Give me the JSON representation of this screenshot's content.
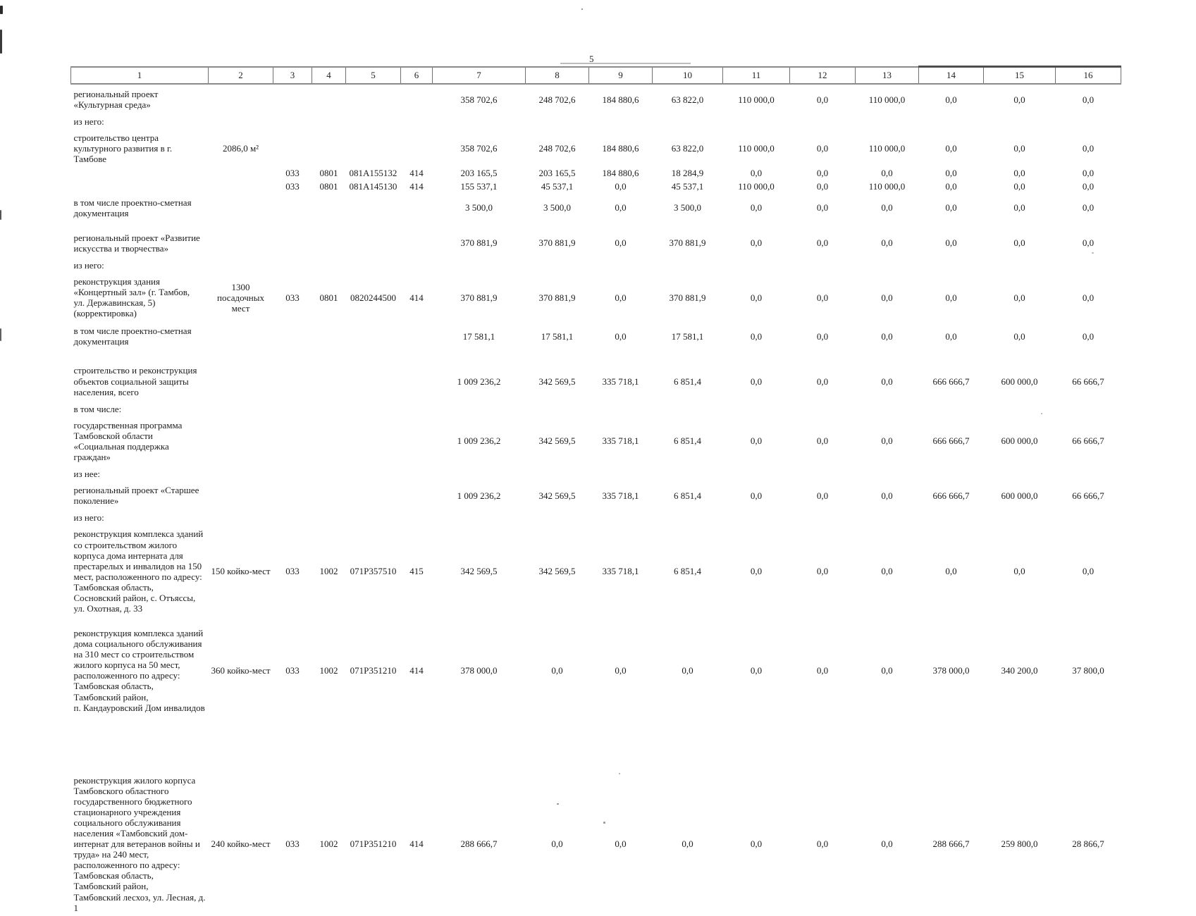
{
  "page": {
    "number": "5"
  },
  "table": {
    "header": [
      "1",
      "2",
      "3",
      "4",
      "5",
      "6",
      "7",
      "8",
      "9",
      "10",
      "11",
      "12",
      "13",
      "14",
      "15",
      "16"
    ],
    "rows": [
      {
        "cls": "",
        "cells": [
          "региональный проект «Культурная среда»",
          "",
          "",
          "",
          "",
          "",
          "358 702,6",
          "248 702,6",
          "184 880,6",
          "63 822,0",
          "110 000,0",
          "0,0",
          "110 000,0",
          "0,0",
          "0,0",
          "0,0"
        ]
      },
      {
        "cls": "label",
        "cells": [
          "из него:",
          "",
          "",
          "",
          "",
          "",
          "",
          "",
          "",
          "",
          "",
          "",
          "",
          "",
          "",
          ""
        ]
      },
      {
        "cls": "",
        "cells": [
          "строительство центра культурного развития в г. Тамбове",
          "2086,0 м²",
          "",
          "",
          "",
          "",
          "358 702,6",
          "248 702,6",
          "184 880,6",
          "63 822,0",
          "110 000,0",
          "0,0",
          "110 000,0",
          "0,0",
          "0,0",
          "0,0"
        ]
      },
      {
        "cls": "code",
        "cells": [
          "",
          "",
          "033",
          "0801",
          "081A155132",
          "414",
          "203 165,5",
          "203 165,5",
          "184 880,6",
          "18 284,9",
          "0,0",
          "0,0",
          "0,0",
          "0,0",
          "0,0",
          "0,0"
        ]
      },
      {
        "cls": "code",
        "cells": [
          "",
          "",
          "033",
          "0801",
          "081A145130",
          "414",
          "155 537,1",
          "45 537,1",
          "0,0",
          "45 537,1",
          "110 000,0",
          "0,0",
          "110 000,0",
          "0,0",
          "0,0",
          "0,0"
        ]
      },
      {
        "cls": "",
        "cells": [
          "в том числе проектно-сметная документация",
          "",
          "",
          "",
          "",
          "",
          "3 500,0",
          "3 500,0",
          "0,0",
          "3 500,0",
          "0,0",
          "0,0",
          "0,0",
          "0,0",
          "0,0",
          "0,0"
        ]
      },
      {
        "cls": "sect",
        "cells": [
          "региональный проект «Развитие искусства и творчества»",
          "",
          "",
          "",
          "",
          "",
          "370 881,9",
          "370 881,9",
          "0,0",
          "370 881,9",
          "0,0",
          "0,0",
          "0,0",
          "0,0",
          "0,0",
          "0,0"
        ]
      },
      {
        "cls": "label",
        "cells": [
          "из него:",
          "",
          "",
          "",
          "",
          "",
          "",
          "",
          "",
          "",
          "",
          "",
          "",
          "",
          "",
          ""
        ]
      },
      {
        "cls": "",
        "cells": [
          "реконструкция здания «Концертный зал» (г. Тамбов,\nул. Державинская, 5)\n(корректировка)",
          "1300\nпосадочных\nмест",
          "033",
          "0801",
          "0820244500",
          "414",
          "370 881,9",
          "370 881,9",
          "0,0",
          "370 881,9",
          "0,0",
          "0,0",
          "0,0",
          "0,0",
          "0,0",
          "0,0"
        ]
      },
      {
        "cls": "",
        "cells": [
          "в том числе проектно-сметная документация",
          "",
          "",
          "",
          "",
          "",
          "17 581,1",
          "17 581,1",
          "0,0",
          "17 581,1",
          "0,0",
          "0,0",
          "0,0",
          "0,0",
          "0,0",
          "0,0"
        ]
      },
      {
        "cls": "sect2",
        "cells": [
          "строительство и реконструкция объектов социальной защиты населения, всего",
          "",
          "",
          "",
          "",
          "",
          "1 009 236,2",
          "342 569,5",
          "335 718,1",
          "6 851,4",
          "0,0",
          "0,0",
          "0,0",
          "666 666,7",
          "600 000,0",
          "66 666,7"
        ]
      },
      {
        "cls": "label",
        "cells": [
          "в том числе:",
          "",
          "",
          "",
          "",
          "",
          "",
          "",
          "",
          "",
          "",
          "",
          "",
          "",
          "",
          ""
        ]
      },
      {
        "cls": "",
        "cells": [
          "государственная программа Тамбовской области «Социальная поддержка граждан»",
          "",
          "",
          "",
          "",
          "",
          "1 009 236,2",
          "342 569,5",
          "335 718,1",
          "6 851,4",
          "0,0",
          "0,0",
          "0,0",
          "666 666,7",
          "600 000,0",
          "66 666,7"
        ]
      },
      {
        "cls": "label",
        "cells": [
          "из нее:",
          "",
          "",
          "",
          "",
          "",
          "",
          "",
          "",
          "",
          "",
          "",
          "",
          "",
          "",
          ""
        ]
      },
      {
        "cls": "",
        "cells": [
          "региональный проект «Старшее поколение»",
          "",
          "",
          "",
          "",
          "",
          "1 009 236,2",
          "342 569,5",
          "335 718,1",
          "6 851,4",
          "0,0",
          "0,0",
          "0,0",
          "666 666,7",
          "600 000,0",
          "66 666,7"
        ]
      },
      {
        "cls": "label",
        "cells": [
          "из него:",
          "",
          "",
          "",
          "",
          "",
          "",
          "",
          "",
          "",
          "",
          "",
          "",
          "",
          "",
          ""
        ]
      },
      {
        "cls": "",
        "cells": [
          "реконструкция комплекса зданий со строительством жилого корпуса дома интерната для престарелых и инвалидов на 150 мест, расположенного по адресу:\nТамбовская область,\nСосновский район, с. Отъяссы,\nул. Охотная, д. 33",
          "150 койко-мест",
          "033",
          "1002",
          "071P357510",
          "415",
          "342 569,5",
          "342 569,5",
          "335 718,1",
          "6 851,4",
          "0,0",
          "0,0",
          "0,0",
          "0,0",
          "0,0",
          "0,0"
        ]
      },
      {
        "cls": "sect",
        "cells": [
          "реконструкция комплекса зданий дома социального обслуживания на 310 мест со строительством жилого корпуса на 50 мест, расположенного по адресу:\nТамбовская область,\nТамбовский район,\nп. Кандауровский Дом инвалидов",
          "360 койко-мест",
          "033",
          "1002",
          "071P351210",
          "414",
          "378 000,0",
          "0,0",
          "0,0",
          "0,0",
          "0,0",
          "0,0",
          "0,0",
          "378 000,0",
          "340 200,0",
          "37 800,0"
        ]
      },
      {
        "cls": "sect-lg",
        "cells": [
          "реконструкция жилого корпуса Тамбовского областного государственного бюджетного стационарного учреждения социального обслуживания населения «Тамбовский дом-интернат для ветеранов войны и труда» на 240 мест, расположенного по адресу: Тамбовская область,\nТамбовский район,\nТамбовский лесхоз, ул. Лесная, д. 1",
          "240 койко-мест",
          "033",
          "1002",
          "071P351210",
          "414",
          "288 666,7",
          "0,0",
          "0,0",
          "0,0",
          "0,0",
          "0,0",
          "0,0",
          "288 666,7",
          "259 800,0",
          "28 866,7"
        ]
      }
    ]
  }
}
